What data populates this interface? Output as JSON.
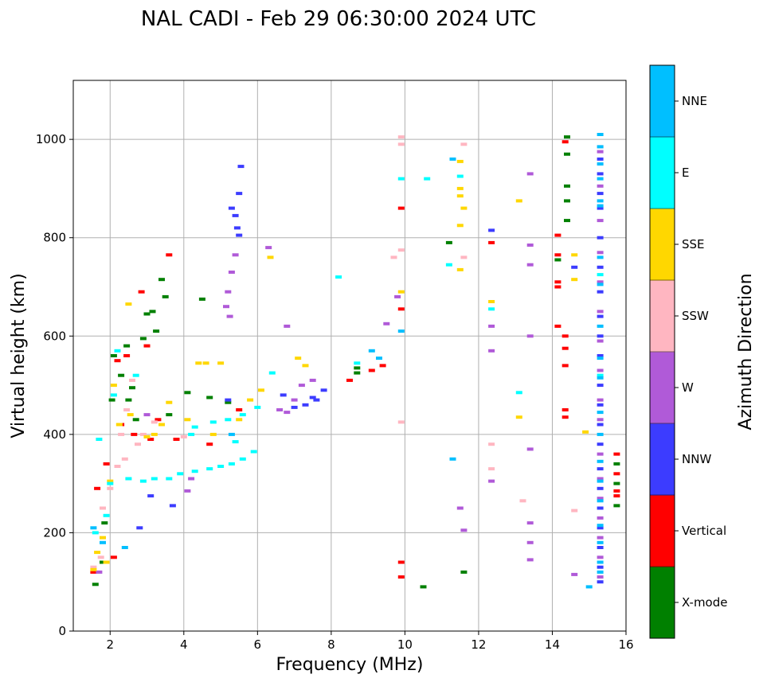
{
  "chart_data": {
    "type": "scatter",
    "title": "NAL CADI - Feb 29 06:30:00 2024 UTC",
    "xlabel": "Frequency (MHz)",
    "ylabel": "Virtual height (km)",
    "xlim": [
      1,
      16
    ],
    "ylim": [
      0,
      1120
    ],
    "xticks": [
      2,
      4,
      6,
      8,
      10,
      12,
      14,
      16
    ],
    "yticks": [
      0,
      200,
      400,
      600,
      800,
      1000
    ],
    "grid": true,
    "colorbar": {
      "label": "Azimuth Direction",
      "categories": [
        {
          "name": "X-mode",
          "color": "#008000"
        },
        {
          "name": "Vertical",
          "color": "#ff0000"
        },
        {
          "name": "NNW",
          "color": "#3c3cff"
        },
        {
          "name": "W",
          "color": "#b05ad8"
        },
        {
          "name": "SSW",
          "color": "#ffb6c1"
        },
        {
          "name": "SSE",
          "color": "#ffd700"
        },
        {
          "name": "E",
          "color": "#00ffff"
        },
        {
          "name": "NNE",
          "color": "#00bfff"
        }
      ]
    },
    "series": [
      {
        "name": "X-mode",
        "points": [
          [
            1.6,
            95
          ],
          [
            1.8,
            140
          ],
          [
            1.85,
            220
          ],
          [
            2.05,
            470
          ],
          [
            2.1,
            560
          ],
          [
            2.3,
            520
          ],
          [
            2.45,
            580
          ],
          [
            2.5,
            470
          ],
          [
            2.6,
            495
          ],
          [
            2.7,
            430
          ],
          [
            2.9,
            595
          ],
          [
            3.0,
            645
          ],
          [
            3.15,
            650
          ],
          [
            3.25,
            610
          ],
          [
            3.4,
            715
          ],
          [
            3.5,
            680
          ],
          [
            3.6,
            440
          ],
          [
            4.1,
            485
          ],
          [
            4.5,
            675
          ],
          [
            4.7,
            475
          ],
          [
            5.2,
            465
          ],
          [
            8.7,
            525
          ],
          [
            8.7,
            535
          ],
          [
            10.5,
            90
          ],
          [
            11.2,
            790
          ],
          [
            11.6,
            120
          ],
          [
            14.4,
            905
          ],
          [
            14.4,
            970
          ],
          [
            14.4,
            1005
          ],
          [
            14.4,
            875
          ],
          [
            14.4,
            835
          ],
          [
            14.15,
            755
          ],
          [
            15.75,
            340
          ],
          [
            15.75,
            300
          ],
          [
            15.75,
            255
          ]
        ]
      },
      {
        "name": "Vertical",
        "points": [
          [
            1.55,
            120
          ],
          [
            1.65,
            290
          ],
          [
            1.9,
            340
          ],
          [
            2.1,
            150
          ],
          [
            2.2,
            550
          ],
          [
            2.3,
            420
          ],
          [
            2.45,
            560
          ],
          [
            2.65,
            400
          ],
          [
            2.85,
            690
          ],
          [
            3.0,
            580
          ],
          [
            3.1,
            390
          ],
          [
            3.3,
            430
          ],
          [
            3.6,
            765
          ],
          [
            3.8,
            390
          ],
          [
            4.7,
            380
          ],
          [
            5.5,
            450
          ],
          [
            8.5,
            510
          ],
          [
            9.1,
            530
          ],
          [
            9.4,
            540
          ],
          [
            9.9,
            655
          ],
          [
            9.9,
            860
          ],
          [
            9.9,
            140
          ],
          [
            9.9,
            110
          ],
          [
            12.35,
            790
          ],
          [
            14.15,
            805
          ],
          [
            14.15,
            765
          ],
          [
            14.15,
            710
          ],
          [
            14.15,
            700
          ],
          [
            14.15,
            620
          ],
          [
            14.35,
            600
          ],
          [
            14.35,
            575
          ],
          [
            14.35,
            540
          ],
          [
            14.35,
            450
          ],
          [
            14.35,
            435
          ],
          [
            14.35,
            995
          ],
          [
            15.75,
            360
          ],
          [
            15.75,
            320
          ],
          [
            15.75,
            285
          ],
          [
            15.75,
            275
          ]
        ]
      },
      {
        "name": "NNW",
        "points": [
          [
            2.8,
            210
          ],
          [
            3.1,
            275
          ],
          [
            3.7,
            255
          ],
          [
            5.2,
            470
          ],
          [
            5.3,
            860
          ],
          [
            5.4,
            845
          ],
          [
            5.45,
            820
          ],
          [
            5.5,
            805
          ],
          [
            5.55,
            945
          ],
          [
            5.5,
            890
          ],
          [
            6.7,
            480
          ],
          [
            7.0,
            455
          ],
          [
            7.3,
            460
          ],
          [
            7.5,
            475
          ],
          [
            7.6,
            470
          ],
          [
            7.8,
            490
          ],
          [
            12.35,
            815
          ],
          [
            14.6,
            740
          ],
          [
            15.3,
            960
          ],
          [
            15.3,
            930
          ],
          [
            15.3,
            890
          ],
          [
            15.3,
            860
          ],
          [
            15.3,
            800
          ],
          [
            15.3,
            740
          ],
          [
            15.3,
            690
          ],
          [
            15.3,
            640
          ],
          [
            15.3,
            600
          ],
          [
            15.3,
            560
          ],
          [
            15.3,
            500
          ],
          [
            15.3,
            460
          ],
          [
            15.3,
            420
          ],
          [
            15.3,
            380
          ],
          [
            15.3,
            330
          ],
          [
            15.3,
            290
          ],
          [
            15.3,
            250
          ],
          [
            15.3,
            210
          ],
          [
            15.3,
            170
          ],
          [
            15.3,
            130
          ],
          [
            15.3,
            100
          ]
        ]
      },
      {
        "name": "W",
        "points": [
          [
            1.7,
            120
          ],
          [
            3.0,
            440
          ],
          [
            4.1,
            285
          ],
          [
            4.2,
            310
          ],
          [
            5.15,
            660
          ],
          [
            5.2,
            690
          ],
          [
            5.3,
            730
          ],
          [
            5.4,
            765
          ],
          [
            5.25,
            640
          ],
          [
            6.3,
            780
          ],
          [
            6.6,
            450
          ],
          [
            6.8,
            445
          ],
          [
            6.8,
            620
          ],
          [
            7.0,
            470
          ],
          [
            7.2,
            500
          ],
          [
            7.5,
            510
          ],
          [
            9.5,
            625
          ],
          [
            9.8,
            680
          ],
          [
            11.5,
            250
          ],
          [
            11.6,
            205
          ],
          [
            12.35,
            620
          ],
          [
            12.35,
            570
          ],
          [
            12.35,
            305
          ],
          [
            13.4,
            785
          ],
          [
            13.4,
            745
          ],
          [
            13.4,
            600
          ],
          [
            13.4,
            370
          ],
          [
            13.4,
            220
          ],
          [
            13.4,
            180
          ],
          [
            13.4,
            145
          ],
          [
            13.4,
            930
          ],
          [
            14.6,
            115
          ],
          [
            15.3,
            975
          ],
          [
            15.3,
            905
          ],
          [
            15.3,
            835
          ],
          [
            15.3,
            770
          ],
          [
            15.3,
            710
          ],
          [
            15.3,
            650
          ],
          [
            15.3,
            590
          ],
          [
            15.3,
            530
          ],
          [
            15.3,
            470
          ],
          [
            15.3,
            430
          ],
          [
            15.3,
            360
          ],
          [
            15.3,
            310
          ],
          [
            15.3,
            270
          ],
          [
            15.3,
            230
          ],
          [
            15.3,
            190
          ],
          [
            15.3,
            150
          ],
          [
            15.3,
            110
          ]
        ]
      },
      {
        "name": "SSW",
        "points": [
          [
            1.55,
            130
          ],
          [
            1.75,
            150
          ],
          [
            1.8,
            250
          ],
          [
            2.0,
            290
          ],
          [
            2.2,
            335
          ],
          [
            2.3,
            400
          ],
          [
            2.4,
            350
          ],
          [
            2.45,
            450
          ],
          [
            2.6,
            510
          ],
          [
            2.75,
            380
          ],
          [
            2.9,
            400
          ],
          [
            3.2,
            425
          ],
          [
            4.0,
            395
          ],
          [
            9.7,
            760
          ],
          [
            9.9,
            1005
          ],
          [
            9.9,
            990
          ],
          [
            9.9,
            775
          ],
          [
            9.9,
            425
          ],
          [
            11.6,
            990
          ],
          [
            11.6,
            760
          ],
          [
            12.35,
            380
          ],
          [
            12.35,
            330
          ],
          [
            13.2,
            265
          ],
          [
            14.6,
            245
          ],
          [
            15.3,
            985
          ]
        ]
      },
      {
        "name": "SSE",
        "points": [
          [
            1.55,
            125
          ],
          [
            1.65,
            160
          ],
          [
            1.8,
            190
          ],
          [
            1.9,
            140
          ],
          [
            2.0,
            305
          ],
          [
            2.1,
            500
          ],
          [
            2.25,
            420
          ],
          [
            2.5,
            665
          ],
          [
            2.55,
            440
          ],
          [
            3.0,
            395
          ],
          [
            3.2,
            400
          ],
          [
            3.4,
            420
          ],
          [
            3.6,
            465
          ],
          [
            4.1,
            430
          ],
          [
            4.4,
            545
          ],
          [
            4.6,
            545
          ],
          [
            4.8,
            400
          ],
          [
            5.0,
            545
          ],
          [
            5.5,
            430
          ],
          [
            5.8,
            470
          ],
          [
            6.1,
            490
          ],
          [
            6.35,
            760
          ],
          [
            7.1,
            555
          ],
          [
            7.3,
            540
          ],
          [
            9.9,
            690
          ],
          [
            11.5,
            955
          ],
          [
            11.5,
            900
          ],
          [
            11.5,
            885
          ],
          [
            11.5,
            825
          ],
          [
            11.5,
            735
          ],
          [
            11.6,
            860
          ],
          [
            12.35,
            670
          ],
          [
            13.1,
            875
          ],
          [
            13.1,
            435
          ],
          [
            14.6,
            765
          ],
          [
            14.6,
            715
          ],
          [
            14.9,
            405
          ]
        ]
      },
      {
        "name": "E",
        "points": [
          [
            1.6,
            200
          ],
          [
            1.7,
            390
          ],
          [
            1.9,
            235
          ],
          [
            2.0,
            300
          ],
          [
            2.1,
            480
          ],
          [
            2.2,
            570
          ],
          [
            2.5,
            310
          ],
          [
            2.7,
            520
          ],
          [
            2.9,
            305
          ],
          [
            3.2,
            310
          ],
          [
            3.6,
            310
          ],
          [
            3.9,
            320
          ],
          [
            4.3,
            325
          ],
          [
            4.7,
            330
          ],
          [
            5.0,
            335
          ],
          [
            5.3,
            340
          ],
          [
            5.6,
            350
          ],
          [
            5.9,
            365
          ],
          [
            4.3,
            415
          ],
          [
            4.8,
            425
          ],
          [
            5.2,
            430
          ],
          [
            5.6,
            440
          ],
          [
            6.0,
            455
          ],
          [
            4.2,
            400
          ],
          [
            5.4,
            385
          ],
          [
            6.4,
            525
          ],
          [
            8.2,
            720
          ],
          [
            8.7,
            545
          ],
          [
            9.9,
            920
          ],
          [
            10.6,
            920
          ],
          [
            11.2,
            745
          ],
          [
            11.5,
            925
          ],
          [
            12.35,
            655
          ],
          [
            13.1,
            485
          ],
          [
            15.3,
            725
          ],
          [
            15.3,
            520
          ]
        ]
      },
      {
        "name": "NNE",
        "points": [
          [
            1.55,
            210
          ],
          [
            1.8,
            180
          ],
          [
            2.4,
            170
          ],
          [
            5.3,
            400
          ],
          [
            9.1,
            570
          ],
          [
            9.3,
            555
          ],
          [
            9.9,
            610
          ],
          [
            11.3,
            960
          ],
          [
            11.3,
            350
          ],
          [
            15.3,
            1010
          ],
          [
            15.3,
            985
          ],
          [
            15.3,
            950
          ],
          [
            15.3,
            920
          ],
          [
            15.3,
            875
          ],
          [
            15.3,
            865
          ],
          [
            15.3,
            760
          ],
          [
            15.3,
            705
          ],
          [
            15.3,
            620
          ],
          [
            15.3,
            555
          ],
          [
            15.3,
            515
          ],
          [
            15.3,
            445
          ],
          [
            15.3,
            400
          ],
          [
            15.3,
            345
          ],
          [
            15.3,
            305
          ],
          [
            15.3,
            265
          ],
          [
            15.3,
            215
          ],
          [
            15.3,
            180
          ],
          [
            15.3,
            140
          ],
          [
            15.3,
            120
          ],
          [
            15.0,
            90
          ]
        ]
      }
    ]
  }
}
